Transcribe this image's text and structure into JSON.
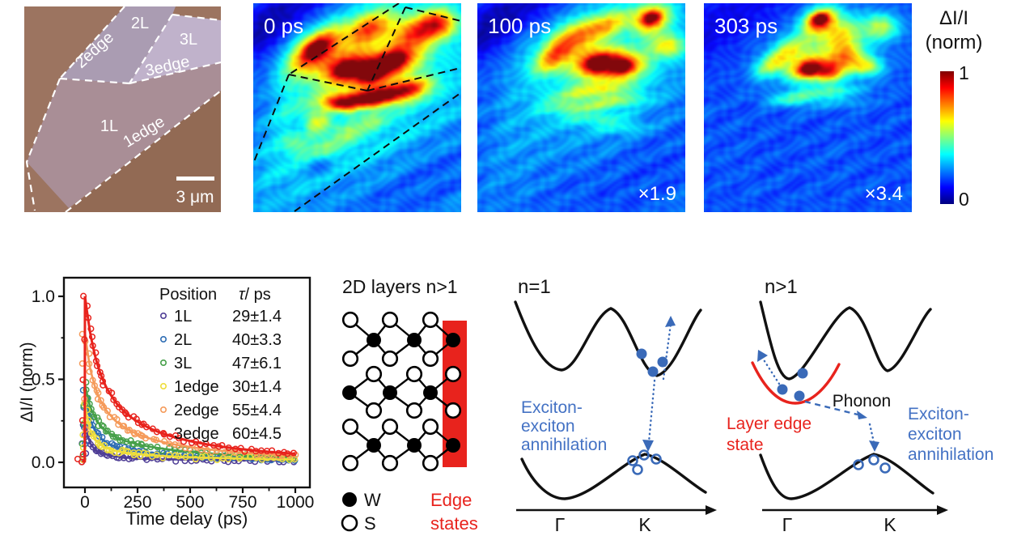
{
  "optical": {
    "labels": {
      "l2": "2L",
      "l3": "3L",
      "l1": "1L",
      "e2": "2edge",
      "e3": "3edge",
      "e1": "1edge"
    },
    "scale_bar": "3 μm"
  },
  "heatmaps": {
    "panel1": {
      "time": "0 ps",
      "multiplier": ""
    },
    "panel2": {
      "time": "100 ps",
      "multiplier": "×1.9"
    },
    "panel3": {
      "time": "303 ps",
      "multiplier": "×3.4"
    }
  },
  "colorbar": {
    "title1": "ΔI/I",
    "title2": "(norm)",
    "max": "1",
    "min": "0"
  },
  "crystal": {
    "title": "2D layers n>1",
    "legend_w": "W",
    "legend_s": "S",
    "edge_label1": "Edge",
    "edge_label2": "states"
  },
  "diagram_n1": {
    "title": "n=1",
    "annihilation": [
      "Exciton-",
      "exciton",
      "annihilation"
    ],
    "gamma": "Γ",
    "k": "K"
  },
  "diagram_n2": {
    "title": "n>1",
    "phonon": "Phonon",
    "edge_state": [
      "Layer edge",
      "state"
    ],
    "annihilation": [
      "Exciton-",
      "exciton",
      "annihilation"
    ],
    "gamma": "Γ",
    "k": "K"
  },
  "colors": {
    "annotation_blue": "#4472c4",
    "shape_blue": "#3a6ab8",
    "accent_red": "#e8231d",
    "jet_max": "#7f0000",
    "jet_min": "#00007f"
  },
  "chart_data": {
    "type": "scatter",
    "title": "",
    "xlabel": "Time delay (ps)",
    "ylabel": "ΔI/I (norm)",
    "xlim": [
      -100,
      1070
    ],
    "ylim": [
      -0.15,
      1.12
    ],
    "xticks": [
      0,
      250,
      500,
      750,
      1000
    ],
    "xminor": [
      125,
      375,
      625,
      875
    ],
    "yticks": [
      {
        "label": "0.0",
        "v": 0
      },
      {
        "label": "0.5",
        "v": 0.5
      },
      {
        "label": "1.0",
        "v": 1.0
      }
    ],
    "yminor": [
      0.25,
      0.75
    ],
    "grid": false,
    "legend_position": "top-right",
    "legend_header": {
      "position": "Position",
      "tau": "τ/ ps"
    },
    "x": [
      0,
      25,
      50,
      75,
      100,
      150,
      200,
      250,
      300,
      350,
      400,
      500,
      600,
      700,
      800,
      900,
      1000
    ],
    "series": [
      {
        "name": "1L",
        "tau": "29±1.4",
        "color": "#4f3e96",
        "values": [
          0.23,
          0.115,
          0.075,
          0.058,
          0.047,
          0.035,
          0.028,
          0.024,
          0.021,
          0.019,
          0.018,
          0.016,
          0.014,
          0.013,
          0.012,
          0.011,
          0.01
        ]
      },
      {
        "name": "2L",
        "tau": "40±3.3",
        "color": "#2e6db4",
        "values": [
          0.43,
          0.26,
          0.185,
          0.145,
          0.12,
          0.092,
          0.077,
          0.066,
          0.059,
          0.053,
          0.048,
          0.04,
          0.034,
          0.03,
          0.026,
          0.023,
          0.021
        ]
      },
      {
        "name": "3L",
        "tau": "47±6.1",
        "color": "#46a049",
        "values": [
          0.47,
          0.335,
          0.265,
          0.22,
          0.19,
          0.15,
          0.126,
          0.109,
          0.096,
          0.086,
          0.077,
          0.063,
          0.053,
          0.045,
          0.039,
          0.034,
          0.03
        ]
      },
      {
        "name": "1edge",
        "tau": "30±1.4",
        "color": "#eedd3a",
        "values": [
          0.35,
          0.195,
          0.135,
          0.105,
          0.088,
          0.068,
          0.057,
          0.05,
          0.044,
          0.04,
          0.036,
          0.031,
          0.027,
          0.024,
          0.021,
          0.019,
          0.017
        ]
      },
      {
        "name": "2edge",
        "tau": "55±4.4",
        "color": "#f59a5a",
        "values": [
          0.78,
          0.565,
          0.445,
          0.37,
          0.315,
          0.245,
          0.2,
          0.17,
          0.147,
          0.129,
          0.114,
          0.092,
          0.076,
          0.064,
          0.054,
          0.047,
          0.041
        ]
      },
      {
        "name": "3edge",
        "tau": "60±4.5",
        "color": "#e8231d",
        "values": [
          1.0,
          0.78,
          0.63,
          0.53,
          0.455,
          0.355,
          0.29,
          0.245,
          0.21,
          0.183,
          0.161,
          0.128,
          0.104,
          0.086,
          0.072,
          0.061,
          0.052
        ]
      }
    ]
  }
}
